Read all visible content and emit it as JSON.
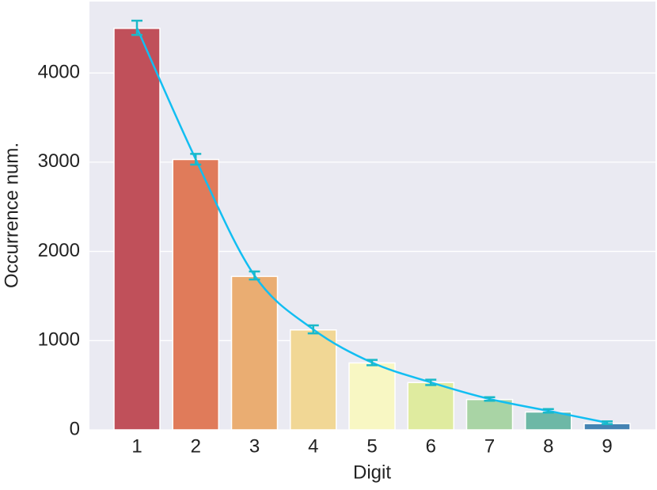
{
  "chart_data": {
    "type": "bar",
    "x_label": "Digit",
    "y_label": "Occurrence num.",
    "categories": [
      "1",
      "2",
      "3",
      "4",
      "5",
      "6",
      "7",
      "8",
      "9"
    ],
    "values": [
      4500,
      3030,
      1720,
      1120,
      750,
      530,
      340,
      200,
      70
    ],
    "colors": [
      "#c0505a",
      "#e07b5a",
      "#eaad72",
      "#f1d795",
      "#f8f7c3",
      "#dfeb9f",
      "#a9d4a5",
      "#6db8a6",
      "#4483b3"
    ],
    "fit": {
      "values": [
        4506,
        3033,
        1730,
        1126,
        754,
        532,
        346,
        213,
        80
      ],
      "errors": [
        80,
        60,
        45,
        45,
        30,
        30,
        20,
        20,
        15
      ],
      "color": "#12bef2",
      "error_color": "#1ab9c8"
    },
    "ylim": [
      0,
      4800
    ],
    "yticks": [
      0,
      1000,
      2000,
      3000,
      4000
    ],
    "grid": true
  }
}
